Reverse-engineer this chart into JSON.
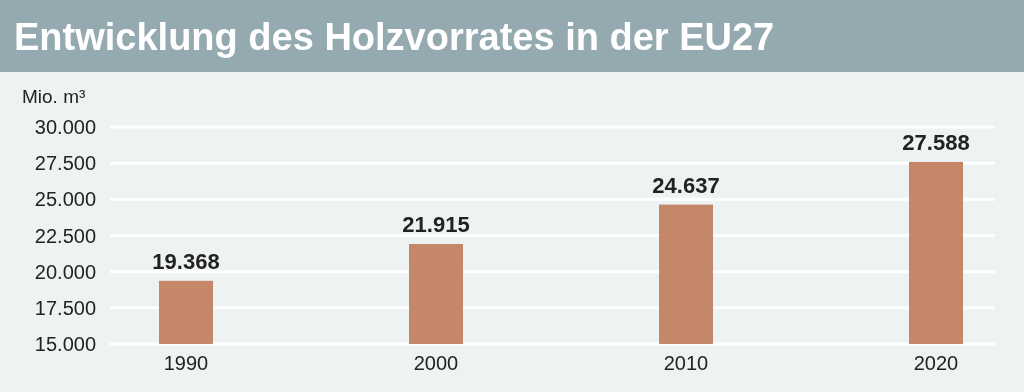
{
  "chart_data": {
    "type": "bar",
    "title": "Entwicklung des Holzvorrates in der EU27",
    "ylabel": "Mio. m³",
    "categories": [
      "1990",
      "2000",
      "2010",
      "2020"
    ],
    "values": [
      19368,
      21915,
      24637,
      27588
    ],
    "value_labels": [
      "19.368",
      "21.915",
      "24.637",
      "27.588"
    ],
    "color": "#c4876a",
    "ylim": [
      15000,
      30000
    ],
    "yticks": [
      {
        "value": 15000,
        "label": "15.000"
      },
      {
        "value": 17500,
        "label": "17.500"
      },
      {
        "value": 20000,
        "label": "20.000"
      },
      {
        "value": 22500,
        "label": "22.500"
      },
      {
        "value": 25000,
        "label": "25.000"
      },
      {
        "value": 27500,
        "label": "27.500"
      },
      {
        "value": 30000,
        "label": "30.000"
      }
    ],
    "grid": "y"
  }
}
